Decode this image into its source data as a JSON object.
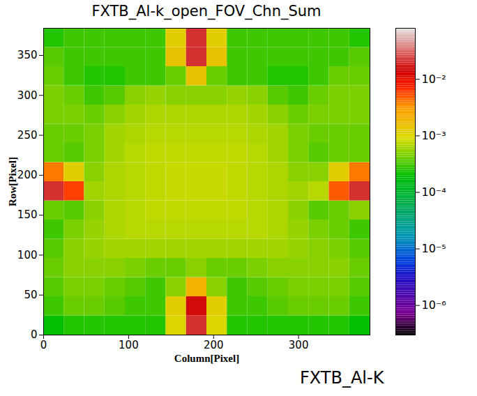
{
  "chart_data": {
    "type": "heatmap",
    "title": "FXTB_Al-k_open_FOV_Chn_Sum",
    "x_label": "Column[Pixel]",
    "y_label": "Row[Pixel]",
    "annotations": [
      "FXTB_Al-K"
    ],
    "xlim": [
      0,
      384
    ],
    "ylim": [
      0,
      384
    ],
    "xticks": [
      0,
      100,
      200,
      300
    ],
    "yticks": [
      0,
      50,
      100,
      150,
      200,
      250,
      300,
      350
    ],
    "log": true,
    "x_edges": [
      0,
      24,
      48,
      72,
      96,
      120,
      144,
      168,
      192,
      216,
      240,
      264,
      288,
      312,
      336,
      360,
      384
    ],
    "y_edges": [
      0,
      24,
      48,
      72,
      96,
      120,
      144,
      168,
      192,
      216,
      240,
      264,
      288,
      312,
      336,
      360,
      384
    ],
    "values": [
      [
        0.0002,
        0.00025,
        0.00025,
        0.00025,
        0.00025,
        0.00025,
        0.001,
        0.02,
        0.001,
        0.00025,
        0.00025,
        0.00025,
        0.00025,
        0.00025,
        0.00025,
        0.0002
      ],
      [
        0.0003,
        0.0004,
        0.0004,
        0.00035,
        0.0003,
        0.0003,
        0.0012,
        0.015,
        0.0012,
        0.0003,
        0.0003,
        0.00035,
        0.0004,
        0.0004,
        0.0004,
        0.0003
      ],
      [
        0.00035,
        0.00045,
        0.00045,
        0.0004,
        0.00035,
        0.0003,
        0.0005,
        0.002,
        0.0005,
        0.0003,
        0.00035,
        0.0004,
        0.00045,
        0.00045,
        0.00045,
        0.00035
      ],
      [
        0.0004,
        0.0005,
        0.0005,
        0.0005,
        0.00045,
        0.0004,
        0.0004,
        0.0005,
        0.0004,
        0.0004,
        0.00045,
        0.0005,
        0.0005,
        0.0005,
        0.0005,
        0.0004
      ],
      [
        0.00035,
        0.0005,
        0.00055,
        0.0006,
        0.0006,
        0.0006,
        0.0006,
        0.0006,
        0.0006,
        0.0006,
        0.0006,
        0.0006,
        0.00055,
        0.0005,
        0.00045,
        0.00035
      ],
      [
        0.0003,
        0.00045,
        0.00055,
        0.00065,
        0.0007,
        0.0007,
        0.0007,
        0.0007,
        0.0007,
        0.0007,
        0.0007,
        0.00065,
        0.00055,
        0.00045,
        0.0004,
        0.0003
      ],
      [
        0.0004,
        0.00035,
        0.0005,
        0.00065,
        0.0007,
        0.00075,
        0.00075,
        0.00075,
        0.00075,
        0.00075,
        0.0007,
        0.00065,
        0.0005,
        0.00035,
        0.0004,
        0.0005
      ],
      [
        0.02,
        0.006,
        0.0006,
        0.00065,
        0.0007,
        0.00075,
        0.0008,
        0.0008,
        0.0008,
        0.00075,
        0.0007,
        0.00065,
        0.0006,
        0.0007,
        0.005,
        0.02
      ],
      [
        0.004,
        0.0012,
        0.0005,
        0.00065,
        0.0007,
        0.00075,
        0.0008,
        0.0008,
        0.0008,
        0.00075,
        0.0007,
        0.00065,
        0.0005,
        0.0005,
        0.0012,
        0.004
      ],
      [
        0.0004,
        0.00035,
        0.00045,
        0.0006,
        0.0007,
        0.00075,
        0.00075,
        0.00075,
        0.00075,
        0.00075,
        0.0007,
        0.0006,
        0.00045,
        0.00035,
        0.0004,
        0.0004
      ],
      [
        0.0004,
        0.0004,
        0.00045,
        0.0006,
        0.00065,
        0.0007,
        0.0007,
        0.0007,
        0.0007,
        0.0007,
        0.00065,
        0.0006,
        0.00045,
        0.0004,
        0.0004,
        0.0004
      ],
      [
        0.00045,
        0.00045,
        0.0004,
        0.0005,
        0.0006,
        0.00065,
        0.00065,
        0.00065,
        0.00065,
        0.00065,
        0.0006,
        0.0005,
        0.0004,
        0.00045,
        0.00045,
        0.00045
      ],
      [
        0.00045,
        0.0004,
        0.0003,
        0.00035,
        0.0005,
        0.00055,
        0.0005,
        0.0005,
        0.0005,
        0.00055,
        0.0005,
        0.00035,
        0.0003,
        0.0004,
        0.00045,
        0.00045
      ],
      [
        0.0004,
        0.0003,
        0.00025,
        0.00025,
        0.0003,
        0.0003,
        0.0004,
        0.0015,
        0.0004,
        0.0003,
        0.0003,
        0.00025,
        0.00025,
        0.0003,
        0.0004,
        0.0004
      ],
      [
        0.00035,
        0.0003,
        0.0003,
        0.0003,
        0.0003,
        0.0003,
        0.0015,
        0.02,
        0.0015,
        0.0003,
        0.0003,
        0.0003,
        0.0003,
        0.0003,
        0.0003,
        0.00035
      ],
      [
        0.00025,
        0.0003,
        0.0003,
        0.0003,
        0.0003,
        0.0003,
        0.0012,
        0.02,
        0.0012,
        0.0003,
        0.0003,
        0.0003,
        0.0003,
        0.0003,
        0.0003,
        0.00025
      ]
    ],
    "colorbar": {
      "range": [
        3e-07,
        0.08
      ],
      "ticks": [
        {
          "value": 1e-06,
          "label": "10⁻⁶"
        },
        {
          "value": 1e-05,
          "label": "10⁻⁵"
        },
        {
          "value": 0.0001,
          "label": "10⁻⁴"
        },
        {
          "value": 0.001,
          "label": "10⁻³"
        },
        {
          "value": 0.01,
          "label": "10⁻²"
        }
      ]
    }
  }
}
